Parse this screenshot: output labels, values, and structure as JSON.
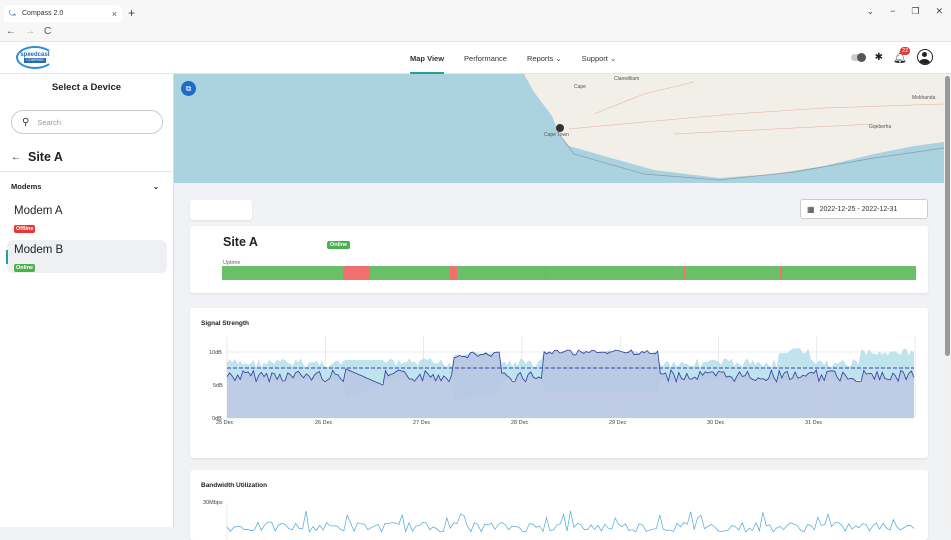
{
  "browser": {
    "tab_title": "Compass 2.0",
    "tab_close": "×",
    "new_tab": "+",
    "controls": [
      "⌄",
      "−",
      "❐",
      "✕"
    ],
    "nav": {
      "back": "←",
      "forward": "→",
      "reload": "C"
    }
  },
  "logo": {
    "line1": "speedcast",
    "line2": "COMPASS"
  },
  "nav": {
    "items": [
      {
        "label": "Map View",
        "active": true
      },
      {
        "label": "Performance"
      },
      {
        "label": "Reports ⌄"
      },
      {
        "label": "Support ⌄"
      }
    ]
  },
  "header_right": {
    "notification_count": "22"
  },
  "sidebar": {
    "heading": "Select a Device",
    "search_placeholder": "Search",
    "site_name": "Site A",
    "section_label": "Modems",
    "modems": [
      {
        "name": "Modem A",
        "status": "Offline",
        "status_color": "#e53935"
      },
      {
        "name": "Modem B",
        "status": "Online",
        "status_color": "#4caf50",
        "selected": true
      }
    ]
  },
  "map": {
    "labels": [
      "Cape Town",
      "Gqeberha",
      "Mokhanda",
      "Clanwilliam",
      "Cape"
    ]
  },
  "date_range": "2022-12-25 - 2022-12-31",
  "site_card": {
    "title": "Site A",
    "status": "Online",
    "uptime_label": "Uptime",
    "downtime_segments": [
      [
        0.174,
        0.213
      ],
      [
        0.329,
        0.339
      ],
      [
        0.465,
        0.467
      ],
      [
        0.665,
        0.667
      ],
      [
        0.804,
        0.807
      ]
    ]
  },
  "signal_chart": {
    "title": "Signal Strength",
    "y_ticks": [
      "10dB",
      "5dB",
      "0dB"
    ],
    "x_ticks": [
      "25 Dec",
      "26 Dec",
      "27 Dec",
      "28 Dec",
      "29 Dec",
      "30 Dec",
      "31 Dec"
    ],
    "colors": {
      "range_fill": "#a9dbe8",
      "area_fill": "#b8c7e3",
      "line": "#2e3c9c",
      "avg": "#3f3fb0"
    }
  },
  "bandwidth_chart": {
    "title": "Bandwidth Utilization",
    "y_tick": "30Mbps"
  }
}
